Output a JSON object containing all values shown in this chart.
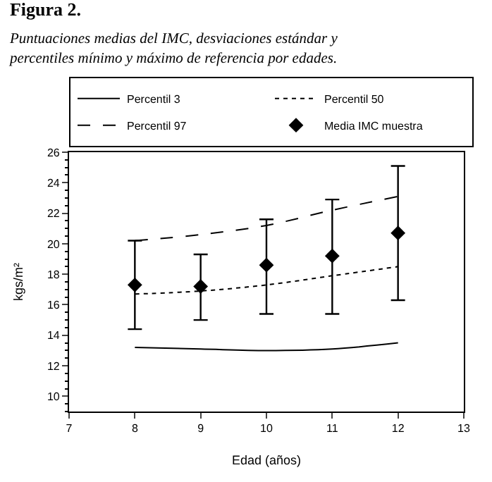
{
  "chart_data": {
    "type": "line",
    "title": "Figura 2.",
    "subtitle": "Puntuaciones medias del IMC, desviaciones estándar y percentiles mínimo y máximo de referencia por edades.",
    "xlabel": "Edad (años)",
    "ylabel": "kgs/m²",
    "x": [
      8,
      9,
      10,
      11,
      12
    ],
    "series": [
      {
        "name": "Percentil 3",
        "color": "#000000",
        "line_style": "solid",
        "values": [
          13.2,
          13.1,
          13.0,
          13.1,
          13.5
        ]
      },
      {
        "name": "Percentil 50",
        "color": "#000000",
        "line_style": "dotted",
        "values": [
          16.7,
          16.9,
          17.3,
          17.9,
          18.5
        ]
      },
      {
        "name": "Percentil 97",
        "color": "#000000",
        "line_style": "dashed",
        "values": [
          20.2,
          20.6,
          21.2,
          22.2,
          23.1
        ]
      },
      {
        "name": "Media IMC muestra",
        "type": "scatter",
        "marker": "diamond",
        "color": "#000000",
        "values": [
          17.3,
          17.2,
          18.6,
          19.2,
          20.7
        ],
        "errors": [
          [
            14.4,
            20.2
          ],
          [
            15.0,
            19.3
          ],
          [
            15.4,
            21.6
          ],
          [
            15.4,
            22.9
          ],
          [
            16.3,
            25.1
          ]
        ]
      }
    ],
    "xlim": [
      7,
      13
    ],
    "xticks": [
      7,
      8,
      9,
      10,
      11,
      12,
      13
    ],
    "ylim": [
      9,
      26
    ],
    "yticks": [
      10,
      12,
      14,
      16,
      18,
      20,
      22,
      24,
      26
    ],
    "legend": "top"
  }
}
